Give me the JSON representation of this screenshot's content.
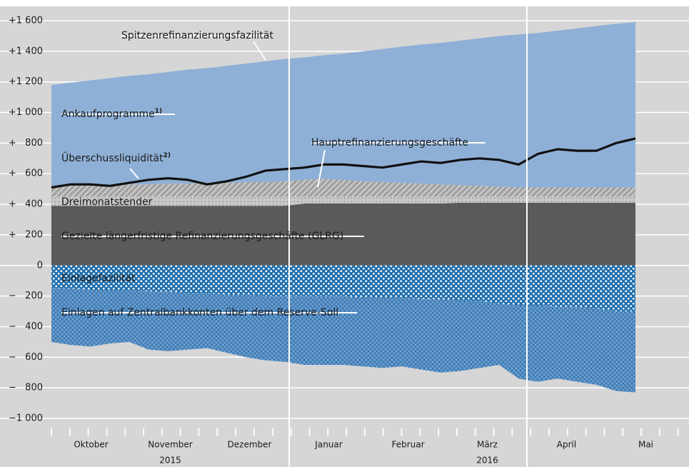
{
  "chart_data": {
    "type": "stacked_area",
    "months": [
      "Oktober",
      "November",
      "Dezember",
      "Januar",
      "Februar",
      "März",
      "April",
      "Mai"
    ],
    "years": [
      "2015",
      "2016"
    ],
    "ylim": [
      -1000,
      1600
    ],
    "yticks": [
      {
        "value": 1600,
        "label": "+1 600"
      },
      {
        "value": 1400,
        "label": "+1 400"
      },
      {
        "value": 1200,
        "label": "+1 200"
      },
      {
        "value": 1000,
        "label": "+1 000"
      },
      {
        "value": 800,
        "label": "+   800"
      },
      {
        "value": 600,
        "label": "+   600"
      },
      {
        "value": 400,
        "label": "+   400"
      },
      {
        "value": 200,
        "label": "+   200"
      },
      0,
      {
        "value": -200,
        "label": "−   200"
      },
      {
        "value": -400,
        "label": "−   400"
      },
      {
        "value": -600,
        "label": "−   600"
      },
      {
        "value": -800,
        "label": "−   800"
      },
      {
        "value": -1000,
        "label": "−1 000"
      }
    ],
    "grid": true,
    "annotation": "Spitzenrefinanzierungsfazilität",
    "series": [
      {
        "name": "Gezielte längerfristige Refinanzierungsgeschäfte (GLRG)",
        "color": "#5a5a5a",
        "pattern": "solid",
        "stack": "pos",
        "values": [
          390,
          390,
          390,
          390,
          390,
          390,
          390,
          390,
          390,
          390,
          390,
          390,
          390,
          405,
          405,
          405,
          405,
          405,
          405,
          405,
          405,
          410,
          410,
          410,
          410,
          410,
          410,
          410,
          410,
          410,
          410
        ]
      },
      {
        "name": "Dreimonatstender",
        "color": "#c4c4c4",
        "pattern": "dots",
        "stack": "pos",
        "values": [
          60,
          60,
          60,
          60,
          60,
          60,
          60,
          60,
          60,
          60,
          60,
          60,
          60,
          45,
          45,
          45,
          45,
          45,
          45,
          45,
          45,
          40,
          40,
          40,
          40,
          40,
          40,
          40,
          40,
          40,
          40
        ]
      },
      {
        "name": "Hauptrefinanzierungsgeschäfte",
        "color": "#a3a3a3",
        "pattern": "hatch",
        "stack": "pos",
        "values": [
          70,
          70,
          75,
          75,
          80,
          80,
          85,
          85,
          90,
          90,
          95,
          95,
          100,
          110,
          115,
          110,
          100,
          95,
          90,
          85,
          80,
          75,
          70,
          65,
          60,
          60,
          60,
          60,
          60,
          60,
          60
        ]
      },
      {
        "name": "Ankaufprogramme",
        "note": "1)",
        "color": "#8fb0d6",
        "pattern": "solid",
        "stack": "pos",
        "values": [
          660,
          675,
          685,
          700,
          710,
          720,
          730,
          745,
          750,
          765,
          775,
          790,
          800,
          800,
          810,
          825,
          850,
          870,
          890,
          910,
          925,
          945,
          965,
          985,
          1000,
          1010,
          1025,
          1040,
          1055,
          1070,
          1080
        ]
      },
      {
        "name": "Einlagefazilität",
        "color": "#1f6fae",
        "pattern": "dots",
        "stack": "neg",
        "values": [
          -150,
          -150,
          -160,
          -160,
          -160,
          -170,
          -170,
          -180,
          -180,
          -190,
          -190,
          -200,
          -200,
          -200,
          -200,
          -200,
          -210,
          -210,
          -210,
          -220,
          -220,
          -230,
          -230,
          -250,
          -260,
          -260,
          -270,
          -270,
          -280,
          -300,
          -300
        ]
      },
      {
        "name": "Einlagen auf Zentralbankkonten über dem Reserve-Soll",
        "color": "#6c9fce",
        "pattern": "cross",
        "stack": "neg",
        "values": [
          -350,
          -370,
          -370,
          -350,
          -340,
          -380,
          -390,
          -370,
          -360,
          -380,
          -410,
          -420,
          -430,
          -450,
          -450,
          -450,
          -450,
          -460,
          -450,
          -460,
          -480,
          -460,
          -440,
          -400,
          -480,
          -500,
          -470,
          -490,
          -500,
          -520,
          -530
        ]
      },
      {
        "name": "Überschussliquidität",
        "note": "2)",
        "color": "#111111",
        "pattern": "line",
        "values": [
          510,
          530,
          530,
          520,
          540,
          560,
          570,
          560,
          530,
          550,
          580,
          620,
          630,
          640,
          660,
          660,
          650,
          640,
          660,
          680,
          670,
          690,
          700,
          690,
          660,
          730,
          760,
          750,
          750,
          800,
          830
        ]
      }
    ]
  }
}
